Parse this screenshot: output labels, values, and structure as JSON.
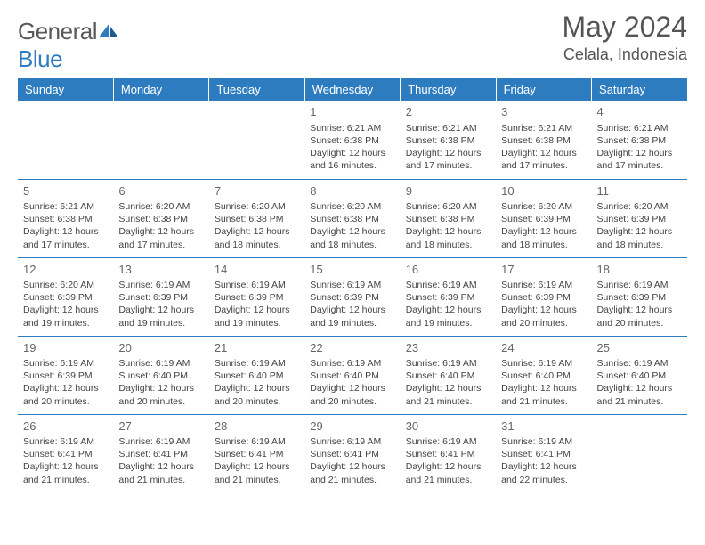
{
  "brand": {
    "part1": "General",
    "part2": "Blue"
  },
  "title": "May 2024",
  "location": "Celala, Indonesia",
  "colors": {
    "header_bg": "#2e7cc0",
    "header_text": "#ffffff",
    "border": "#2e7cc0",
    "text": "#444444",
    "title_text": "#555555"
  },
  "day_headers": [
    "Sunday",
    "Monday",
    "Tuesday",
    "Wednesday",
    "Thursday",
    "Friday",
    "Saturday"
  ],
  "weeks": [
    [
      null,
      null,
      null,
      {
        "n": "1",
        "sunrise": "Sunrise: 6:21 AM",
        "sunset": "Sunset: 6:38 PM",
        "daylight": "Daylight: 12 hours and 16 minutes."
      },
      {
        "n": "2",
        "sunrise": "Sunrise: 6:21 AM",
        "sunset": "Sunset: 6:38 PM",
        "daylight": "Daylight: 12 hours and 17 minutes."
      },
      {
        "n": "3",
        "sunrise": "Sunrise: 6:21 AM",
        "sunset": "Sunset: 6:38 PM",
        "daylight": "Daylight: 12 hours and 17 minutes."
      },
      {
        "n": "4",
        "sunrise": "Sunrise: 6:21 AM",
        "sunset": "Sunset: 6:38 PM",
        "daylight": "Daylight: 12 hours and 17 minutes."
      }
    ],
    [
      {
        "n": "5",
        "sunrise": "Sunrise: 6:21 AM",
        "sunset": "Sunset: 6:38 PM",
        "daylight": "Daylight: 12 hours and 17 minutes."
      },
      {
        "n": "6",
        "sunrise": "Sunrise: 6:20 AM",
        "sunset": "Sunset: 6:38 PM",
        "daylight": "Daylight: 12 hours and 17 minutes."
      },
      {
        "n": "7",
        "sunrise": "Sunrise: 6:20 AM",
        "sunset": "Sunset: 6:38 PM",
        "daylight": "Daylight: 12 hours and 18 minutes."
      },
      {
        "n": "8",
        "sunrise": "Sunrise: 6:20 AM",
        "sunset": "Sunset: 6:38 PM",
        "daylight": "Daylight: 12 hours and 18 minutes."
      },
      {
        "n": "9",
        "sunrise": "Sunrise: 6:20 AM",
        "sunset": "Sunset: 6:38 PM",
        "daylight": "Daylight: 12 hours and 18 minutes."
      },
      {
        "n": "10",
        "sunrise": "Sunrise: 6:20 AM",
        "sunset": "Sunset: 6:39 PM",
        "daylight": "Daylight: 12 hours and 18 minutes."
      },
      {
        "n": "11",
        "sunrise": "Sunrise: 6:20 AM",
        "sunset": "Sunset: 6:39 PM",
        "daylight": "Daylight: 12 hours and 18 minutes."
      }
    ],
    [
      {
        "n": "12",
        "sunrise": "Sunrise: 6:20 AM",
        "sunset": "Sunset: 6:39 PM",
        "daylight": "Daylight: 12 hours and 19 minutes."
      },
      {
        "n": "13",
        "sunrise": "Sunrise: 6:19 AM",
        "sunset": "Sunset: 6:39 PM",
        "daylight": "Daylight: 12 hours and 19 minutes."
      },
      {
        "n": "14",
        "sunrise": "Sunrise: 6:19 AM",
        "sunset": "Sunset: 6:39 PM",
        "daylight": "Daylight: 12 hours and 19 minutes."
      },
      {
        "n": "15",
        "sunrise": "Sunrise: 6:19 AM",
        "sunset": "Sunset: 6:39 PM",
        "daylight": "Daylight: 12 hours and 19 minutes."
      },
      {
        "n": "16",
        "sunrise": "Sunrise: 6:19 AM",
        "sunset": "Sunset: 6:39 PM",
        "daylight": "Daylight: 12 hours and 19 minutes."
      },
      {
        "n": "17",
        "sunrise": "Sunrise: 6:19 AM",
        "sunset": "Sunset: 6:39 PM",
        "daylight": "Daylight: 12 hours and 20 minutes."
      },
      {
        "n": "18",
        "sunrise": "Sunrise: 6:19 AM",
        "sunset": "Sunset: 6:39 PM",
        "daylight": "Daylight: 12 hours and 20 minutes."
      }
    ],
    [
      {
        "n": "19",
        "sunrise": "Sunrise: 6:19 AM",
        "sunset": "Sunset: 6:39 PM",
        "daylight": "Daylight: 12 hours and 20 minutes."
      },
      {
        "n": "20",
        "sunrise": "Sunrise: 6:19 AM",
        "sunset": "Sunset: 6:40 PM",
        "daylight": "Daylight: 12 hours and 20 minutes."
      },
      {
        "n": "21",
        "sunrise": "Sunrise: 6:19 AM",
        "sunset": "Sunset: 6:40 PM",
        "daylight": "Daylight: 12 hours and 20 minutes."
      },
      {
        "n": "22",
        "sunrise": "Sunrise: 6:19 AM",
        "sunset": "Sunset: 6:40 PM",
        "daylight": "Daylight: 12 hours and 20 minutes."
      },
      {
        "n": "23",
        "sunrise": "Sunrise: 6:19 AM",
        "sunset": "Sunset: 6:40 PM",
        "daylight": "Daylight: 12 hours and 21 minutes."
      },
      {
        "n": "24",
        "sunrise": "Sunrise: 6:19 AM",
        "sunset": "Sunset: 6:40 PM",
        "daylight": "Daylight: 12 hours and 21 minutes."
      },
      {
        "n": "25",
        "sunrise": "Sunrise: 6:19 AM",
        "sunset": "Sunset: 6:40 PM",
        "daylight": "Daylight: 12 hours and 21 minutes."
      }
    ],
    [
      {
        "n": "26",
        "sunrise": "Sunrise: 6:19 AM",
        "sunset": "Sunset: 6:41 PM",
        "daylight": "Daylight: 12 hours and 21 minutes."
      },
      {
        "n": "27",
        "sunrise": "Sunrise: 6:19 AM",
        "sunset": "Sunset: 6:41 PM",
        "daylight": "Daylight: 12 hours and 21 minutes."
      },
      {
        "n": "28",
        "sunrise": "Sunrise: 6:19 AM",
        "sunset": "Sunset: 6:41 PM",
        "daylight": "Daylight: 12 hours and 21 minutes."
      },
      {
        "n": "29",
        "sunrise": "Sunrise: 6:19 AM",
        "sunset": "Sunset: 6:41 PM",
        "daylight": "Daylight: 12 hours and 21 minutes."
      },
      {
        "n": "30",
        "sunrise": "Sunrise: 6:19 AM",
        "sunset": "Sunset: 6:41 PM",
        "daylight": "Daylight: 12 hours and 21 minutes."
      },
      {
        "n": "31",
        "sunrise": "Sunrise: 6:19 AM",
        "sunset": "Sunset: 6:41 PM",
        "daylight": "Daylight: 12 hours and 22 minutes."
      },
      null
    ]
  ]
}
